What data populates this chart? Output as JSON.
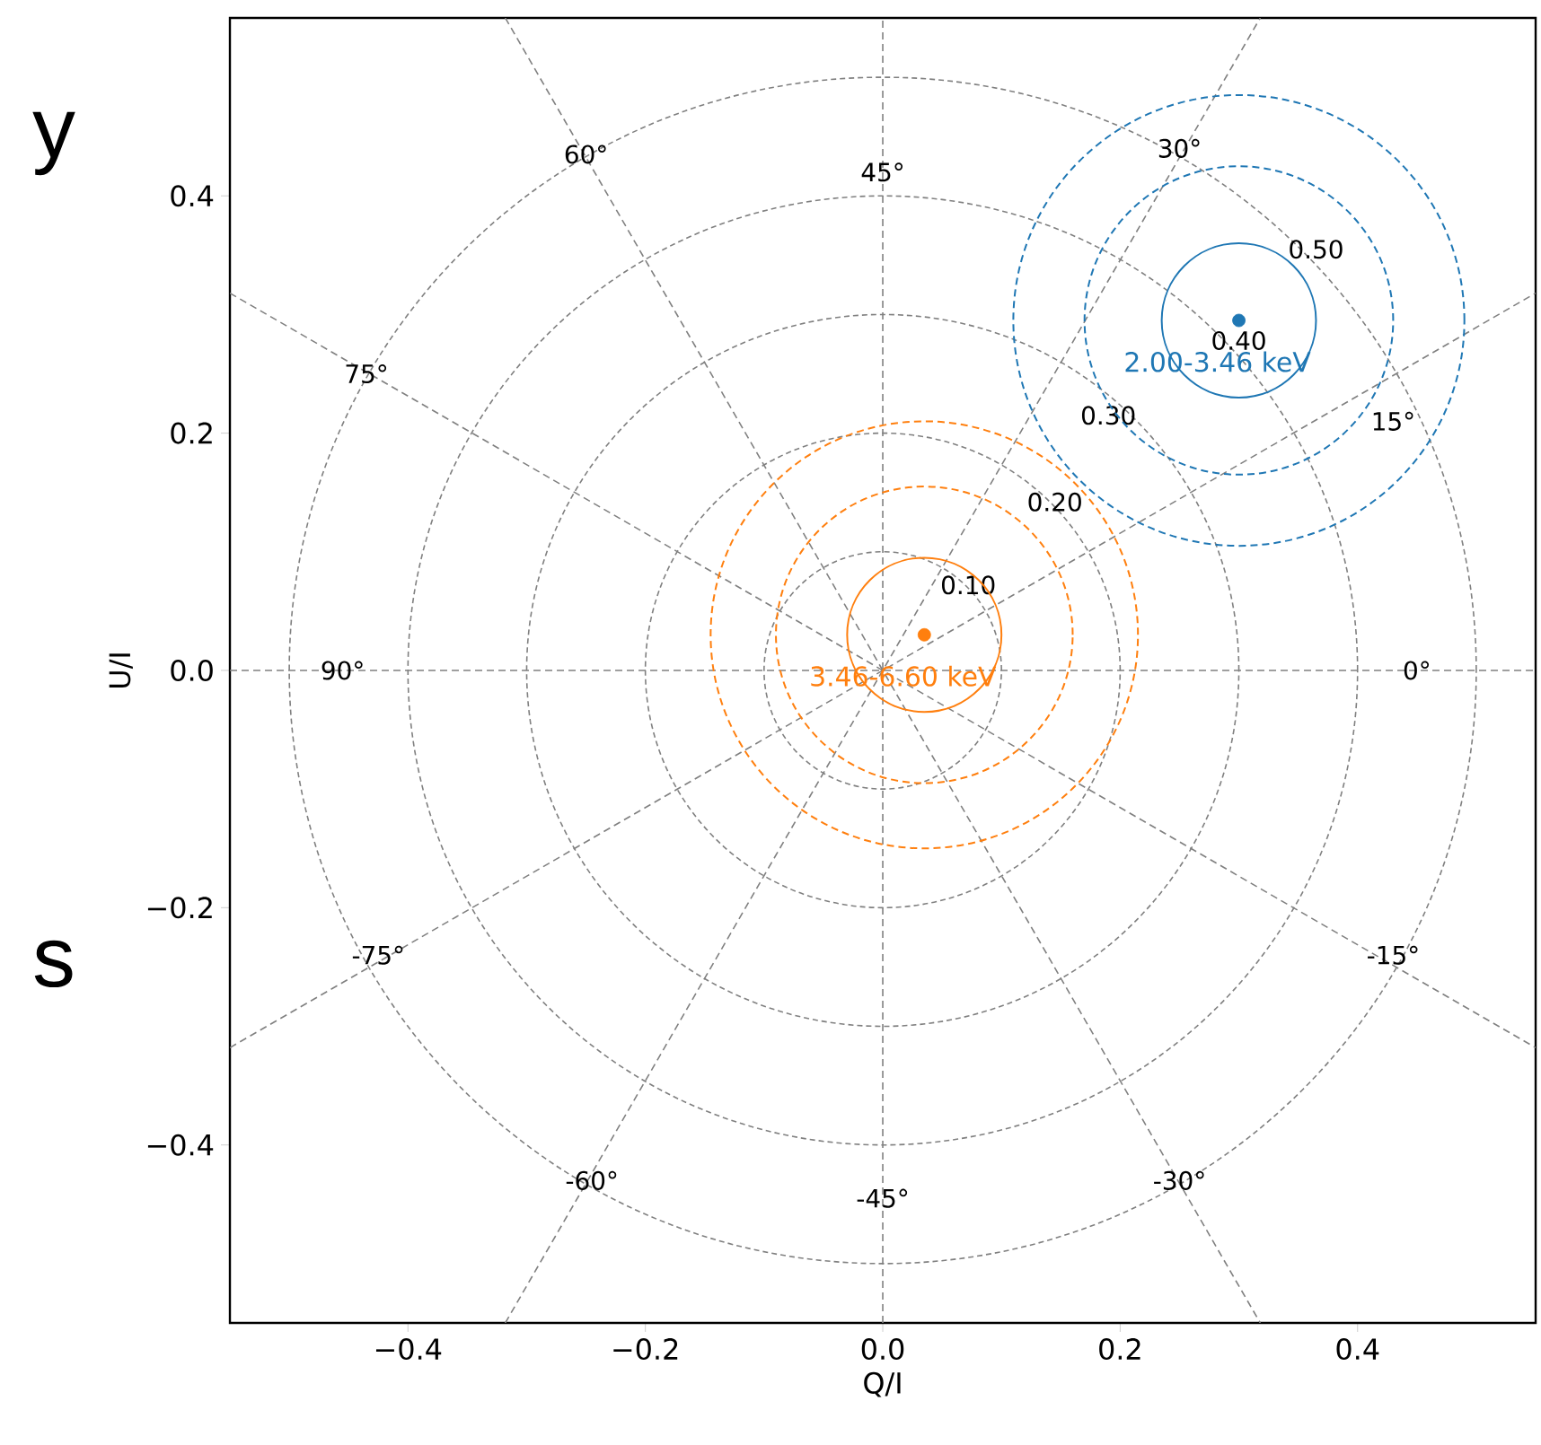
{
  "chart_data": {
    "type": "scatter",
    "xlabel": "Q/I",
    "ylabel": "U/I",
    "xlim": [
      -0.55,
      0.55
    ],
    "ylim": [
      -0.55,
      0.55
    ],
    "xticks": [
      {
        "value": -0.4,
        "label": "−0.4"
      },
      {
        "value": -0.2,
        "label": "−0.2"
      },
      {
        "value": 0.0,
        "label": "0.0"
      },
      {
        "value": 0.2,
        "label": "0.2"
      },
      {
        "value": 0.4,
        "label": "0.4"
      }
    ],
    "yticks": [
      {
        "value": -0.4,
        "label": "−0.4"
      },
      {
        "value": -0.2,
        "label": "−0.2"
      },
      {
        "value": 0.0,
        "label": "0.0"
      },
      {
        "value": 0.2,
        "label": "0.2"
      },
      {
        "value": 0.4,
        "label": "0.4"
      }
    ],
    "series": [
      {
        "type": "line",
        "color": "#808080",
        "line_style": "dashed",
        "x": [
          -0.55,
          0.55
        ],
        "values": [
          0,
          0
        ]
      },
      {
        "type": "line",
        "color": "#808080",
        "line_style": "dashed",
        "x": [
          -0.55,
          0.55
        ],
        "values": [
          -0.318,
          0.318
        ]
      },
      {
        "type": "line",
        "color": "#808080",
        "line_style": "dashed",
        "x": [
          -0.318,
          0.318
        ],
        "values": [
          -0.55,
          0.55
        ]
      },
      {
        "type": "line",
        "color": "#808080",
        "line_style": "dashed",
        "x": [
          0,
          0
        ],
        "values": [
          -0.55,
          0.55
        ]
      },
      {
        "type": "line",
        "color": "#808080",
        "line_style": "dashed",
        "x": [
          -0.318,
          0.318
        ],
        "values": [
          0.55,
          -0.55
        ]
      },
      {
        "type": "line",
        "color": "#808080",
        "line_style": "dashed",
        "x": [
          -0.55,
          0.55
        ],
        "values": [
          0.318,
          -0.318
        ]
      },
      {
        "name": "2.00-3.46 keV",
        "color": "#1f77b4",
        "marker": "circle",
        "x": [
          0.3
        ],
        "values": [
          0.295
        ]
      },
      {
        "name": "3.46-6.60 keV",
        "color": "#ff7f0e",
        "marker": "circle",
        "x": [
          0.035
        ],
        "values": [
          0.03
        ]
      }
    ],
    "annotations": [
      "y",
      "s",
      "0.10",
      "0.20",
      "0.30",
      "0.40",
      "0.50",
      "0°",
      "15°",
      "30°",
      "45°",
      "60°",
      "75°",
      "90°",
      "-75°",
      "-60°",
      "-45°",
      "-30°",
      "-15°"
    ]
  }
}
